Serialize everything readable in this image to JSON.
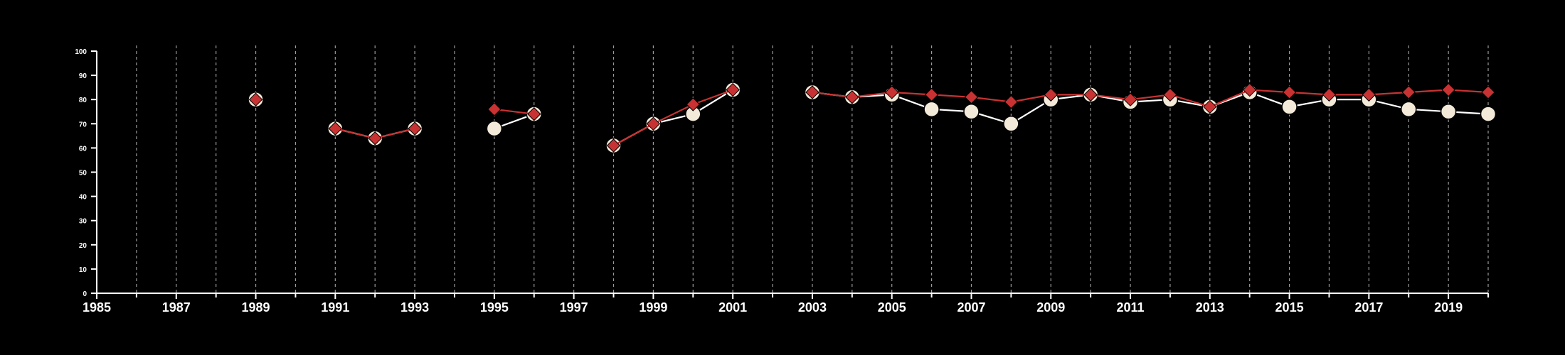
{
  "colors": {
    "background": "#000000",
    "axis": "#ffffff",
    "grid": "#9a9a9a",
    "series_a_line": "#ffffff",
    "series_a_marker": "#f3ead9",
    "series_b_color": "#c83232"
  },
  "chart_data": {
    "type": "line",
    "title": "",
    "xlabel": "",
    "ylabel": "",
    "xlim": [
      1985,
      2020
    ],
    "ylim": [
      0,
      100
    ],
    "x_ticks": [
      1985,
      1987,
      1989,
      1991,
      1993,
      1995,
      1997,
      1999,
      2001,
      2003,
      2005,
      2007,
      2009,
      2011,
      2013,
      2015,
      2017,
      2019
    ],
    "y_ticks": [
      0,
      10,
      20,
      30,
      40,
      50,
      60,
      70,
      80,
      90,
      100
    ],
    "grid": "vertical dashed lines at every year",
    "legend": "none",
    "series": [
      {
        "marker": "circle",
        "points": [
          [
            1989,
            80
          ],
          [
            1991,
            68
          ],
          [
            1992,
            64
          ],
          [
            1993,
            68
          ],
          [
            1995,
            68
          ],
          [
            1996,
            74
          ],
          [
            1998,
            61
          ],
          [
            1999,
            70
          ],
          [
            2000,
            74
          ],
          [
            2001,
            84
          ],
          [
            2003,
            83
          ],
          [
            2004,
            81
          ],
          [
            2005,
            82
          ],
          [
            2006,
            76
          ],
          [
            2007,
            75
          ],
          [
            2008,
            70
          ],
          [
            2009,
            80
          ],
          [
            2010,
            82
          ],
          [
            2011,
            79
          ],
          [
            2012,
            80
          ],
          [
            2013,
            77
          ],
          [
            2014,
            83
          ],
          [
            2015,
            77
          ],
          [
            2016,
            80
          ],
          [
            2017,
            80
          ],
          [
            2018,
            76
          ],
          [
            2019,
            75
          ],
          [
            2020,
            74
          ]
        ]
      },
      {
        "marker": "diamond",
        "points": [
          [
            1989,
            80
          ],
          [
            1991,
            68
          ],
          [
            1992,
            64
          ],
          [
            1993,
            68
          ],
          [
            1995,
            76
          ],
          [
            1996,
            74
          ],
          [
            1998,
            61
          ],
          [
            1999,
            70
          ],
          [
            2000,
            78
          ],
          [
            2001,
            84
          ],
          [
            2003,
            83
          ],
          [
            2004,
            81
          ],
          [
            2005,
            83
          ],
          [
            2006,
            82
          ],
          [
            2007,
            81
          ],
          [
            2008,
            79
          ],
          [
            2009,
            82
          ],
          [
            2010,
            82
          ],
          [
            2011,
            80
          ],
          [
            2012,
            82
          ],
          [
            2013,
            77
          ],
          [
            2014,
            84
          ],
          [
            2015,
            83
          ],
          [
            2016,
            82
          ],
          [
            2017,
            82
          ],
          [
            2018,
            83
          ],
          [
            2019,
            84
          ],
          [
            2020,
            83
          ]
        ]
      }
    ]
  }
}
